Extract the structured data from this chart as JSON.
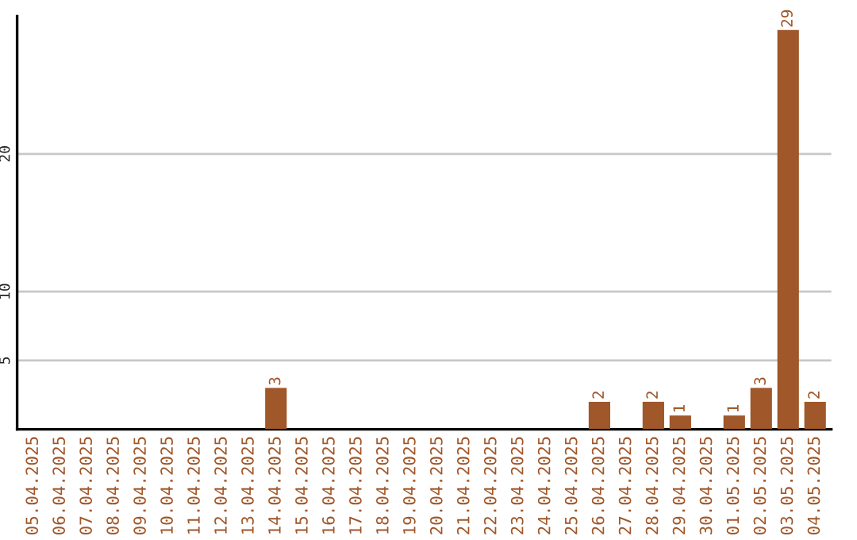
{
  "chart_data": {
    "type": "bar",
    "categories": [
      "05.04.2025",
      "06.04.2025",
      "07.04.2025",
      "08.04.2025",
      "09.04.2025",
      "10.04.2025",
      "11.04.2025",
      "12.04.2025",
      "13.04.2025",
      "14.04.2025",
      "15.04.2025",
      "16.04.2025",
      "17.04.2025",
      "18.04.2025",
      "19.04.2025",
      "20.04.2025",
      "21.04.2025",
      "22.04.2025",
      "23.04.2025",
      "24.04.2025",
      "25.04.2025",
      "26.04.2025",
      "27.04.2025",
      "28.04.2025",
      "29.04.2025",
      "30.04.2025",
      "01.05.2025",
      "02.05.2025",
      "03.05.2025",
      "04.05.2025"
    ],
    "values": [
      0,
      0,
      0,
      0,
      0,
      0,
      0,
      0,
      0,
      3,
      0,
      0,
      0,
      0,
      0,
      0,
      0,
      0,
      0,
      0,
      0,
      2,
      0,
      2,
      1,
      0,
      1,
      3,
      29,
      2
    ],
    "value_labels": [
      null,
      null,
      null,
      null,
      null,
      null,
      null,
      null,
      null,
      "3",
      null,
      null,
      null,
      null,
      null,
      null,
      null,
      null,
      null,
      null,
      null,
      "2",
      null,
      "2",
      "1",
      null,
      "1",
      "3",
      "29",
      "2"
    ],
    "color": "#a0572a",
    "ylim": [
      0,
      30
    ],
    "yticks": [
      5,
      10,
      20
    ],
    "grid": "y"
  }
}
